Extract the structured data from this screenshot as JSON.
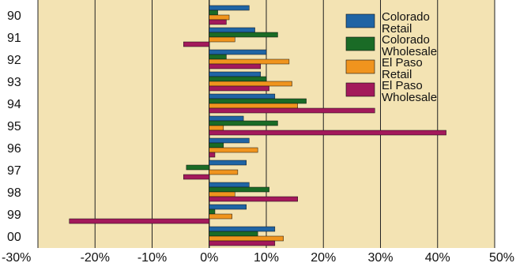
{
  "chart_data": {
    "type": "bar",
    "orientation": "horizontal",
    "categories": [
      "90",
      "91",
      "92",
      "93",
      "94",
      "95",
      "96",
      "97",
      "98",
      "99",
      "00"
    ],
    "x_tick_labels": [
      "-30%",
      "-20%",
      "-10%",
      "0%",
      "10%",
      "20%",
      "30%",
      "40%",
      "50%"
    ],
    "xlim": [
      -30,
      50
    ],
    "grid": true,
    "legend_position": "top-right",
    "series": [
      {
        "name": "Colorado Retail",
        "color": "#1f64a4",
        "values": [
          7,
          8,
          10,
          9,
          11.5,
          6,
          7,
          6.5,
          7,
          6.5,
          11.5
        ]
      },
      {
        "name": "Colorado Wholesale",
        "color": "#1a6b26",
        "values": [
          1.5,
          12,
          3,
          10,
          17,
          12,
          2.5,
          -4,
          10.5,
          1,
          8.5
        ]
      },
      {
        "name": "El Paso Retail",
        "color": "#f0941e",
        "values": [
          3.5,
          4.5,
          14,
          14.5,
          15.5,
          2.5,
          8.5,
          5,
          4.5,
          4,
          13
        ]
      },
      {
        "name": "El Paso Wholesale",
        "color": "#a3195b",
        "values": [
          3,
          -4.5,
          9,
          10.5,
          29,
          41.5,
          1,
          -4.5,
          15.5,
          -24.5,
          11.5
        ]
      }
    ],
    "legend": [
      {
        "lines": [
          "Colorado",
          "Retail"
        ]
      },
      {
        "lines": [
          "Colorado",
          "Wholesale"
        ]
      },
      {
        "lines": [
          "El Paso",
          "Retail"
        ]
      },
      {
        "lines": [
          "El Paso",
          "Wholesale"
        ]
      }
    ]
  }
}
